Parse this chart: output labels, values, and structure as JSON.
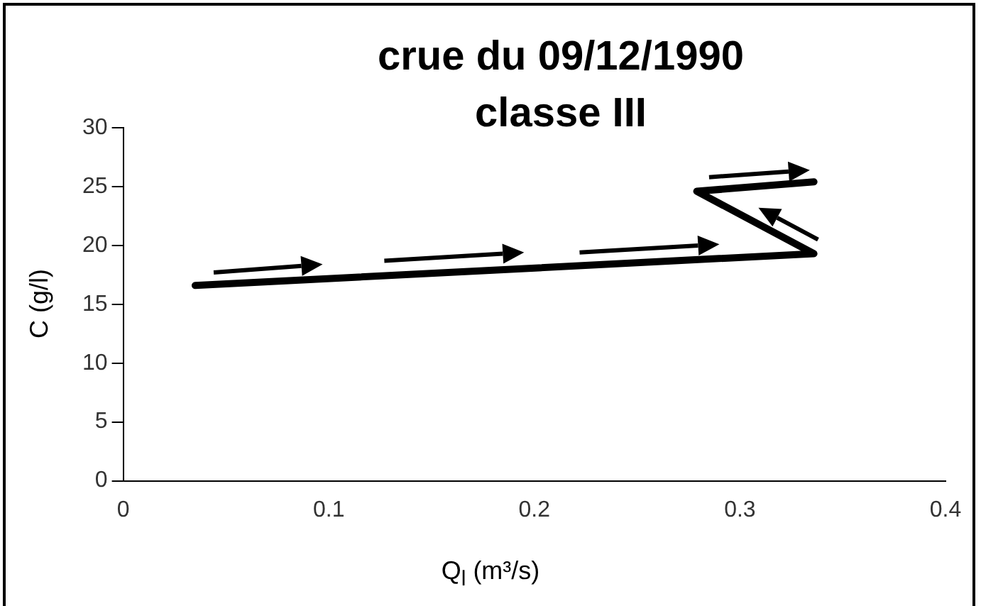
{
  "chart_data": {
    "type": "line",
    "title": "crue du 09/12/1990\nclasse III",
    "xlabel": "Q$_{l}$ (m³/s)",
    "ylabel": "C (g/l)",
    "series": [
      {
        "color": "#000000",
        "x": [
          0.035,
          0.336,
          0.279,
          0.336
        ],
        "values": [
          16.6,
          19.3,
          24.6,
          25.4
        ]
      }
    ],
    "xlim": [
      0,
      0.4
    ],
    "xticks": [
      0,
      0.1,
      0.2,
      0.3,
      0.4
    ],
    "ylim": [
      0,
      30
    ],
    "yticks": [
      0,
      5,
      10,
      15,
      20,
      25,
      30
    ],
    "grid": false,
    "legend": false,
    "marker": "none",
    "line_style": "solid"
  }
}
